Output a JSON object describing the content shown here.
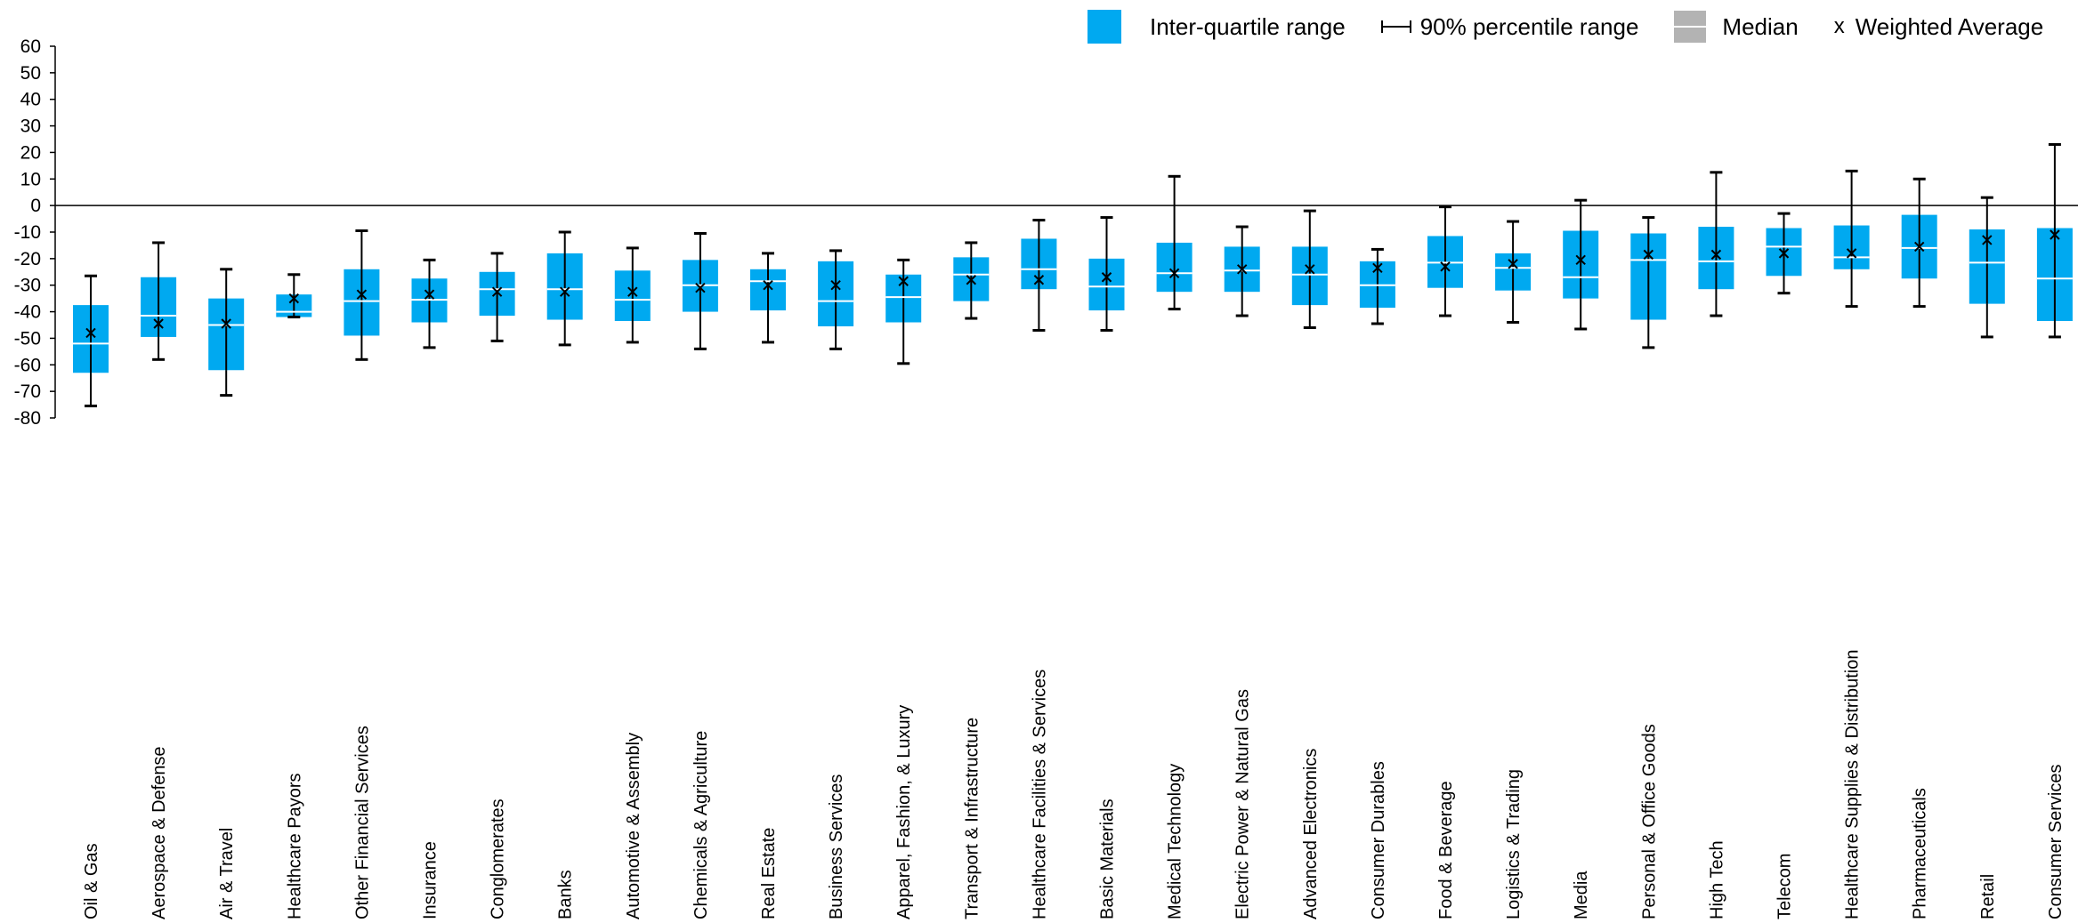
{
  "legend": {
    "iqr_label": "Inter-quartile range",
    "p90_label": "90% percentile range",
    "median_label": "Median",
    "wavg_label": "Weighted Average",
    "wavg_marker": "x"
  },
  "colors": {
    "iqr_fill": "#00a9f0",
    "median_line": "#ffffff",
    "whisker": "#000000",
    "legend_median_swatch": "#b3b3b3"
  },
  "chart_data": {
    "type": "box",
    "title": "",
    "xlabel": "",
    "ylabel": "",
    "ylim": [
      -80,
      60
    ],
    "yticks": [
      60,
      50,
      40,
      30,
      20,
      10,
      0,
      -10,
      -20,
      -30,
      -40,
      -50,
      -60,
      -70,
      -80
    ],
    "zero_line": true,
    "legend_position": "top-right",
    "categories": [
      "Oil & Gas",
      "Aerospace & Defense",
      "Air & Travel",
      "Healthcare Payors",
      "Other Financial Services",
      "Insurance",
      "Conglomerates",
      "Banks",
      "Automotive & Assembly",
      "Chemicals & Agriculture",
      "Real Estate",
      "Business Services",
      "Apparel, Fashion, & Luxury",
      "Transport & Infrastructure",
      "Healthcare Facilities & Services",
      "Basic Materials",
      "Medical Technology",
      "Electric Power & Natural Gas",
      "Advanced Electronics",
      "Consumer Durables",
      "Food & Beverage",
      "Logistics & Trading",
      "Media",
      "Personal & Office Goods",
      "High Tech",
      "Telecom",
      "Healthcare Supplies & Distribution",
      "Pharmaceuticals",
      "Retail",
      "Consumer Services"
    ],
    "p5": [
      -75.5,
      -58,
      -71.5,
      -42,
      -58,
      -53.5,
      -51,
      -52.5,
      -51.5,
      -54,
      -51.5,
      -54,
      -59.5,
      -42.5,
      -47,
      -47,
      -39,
      -41.5,
      -46,
      -44.5,
      -41.5,
      -44,
      -46.5,
      -53.5,
      -41.5,
      -33,
      -38,
      -38,
      -49.5,
      -49.5
    ],
    "q1": [
      -63,
      -49.5,
      -62,
      -42,
      -49,
      -44,
      -41.5,
      -43,
      -43.5,
      -40,
      -39.5,
      -45.5,
      -44,
      -36,
      -31.5,
      -39.5,
      -32.5,
      -32.5,
      -37.5,
      -38.5,
      -31,
      -32,
      -35,
      -43,
      -31.5,
      -26.5,
      -24,
      -27.5,
      -37,
      -43.5
    ],
    "median": [
      -52,
      -41.5,
      -45,
      -40,
      -36,
      -35.5,
      -31.5,
      -31.5,
      -35.5,
      -30,
      -28.5,
      -36,
      -34.5,
      -26,
      -24,
      -30.5,
      -25.5,
      -24.5,
      -26,
      -30,
      -21.5,
      -23.5,
      -27,
      -20.5,
      -21,
      -15.5,
      -19.5,
      -16,
      -21.5,
      -27.5
    ],
    "q3": [
      -37.5,
      -27,
      -35,
      -33.5,
      -24,
      -27.5,
      -25,
      -18,
      -24.5,
      -20.5,
      -24,
      -21,
      -26,
      -19.5,
      -12.5,
      -20,
      -14,
      -15.5,
      -15.5,
      -21,
      -11.5,
      -18,
      -9.5,
      -10.5,
      -8,
      -8.5,
      -7.5,
      -3.5,
      -9,
      -8.5
    ],
    "p95": [
      -26.5,
      -14,
      -24,
      -26,
      -9.5,
      -20.5,
      -18,
      -10,
      -16,
      -10.5,
      -18,
      -17,
      -20.5,
      -14,
      -5.5,
      -4.5,
      11,
      -8,
      -2,
      -16.5,
      -0.5,
      -6,
      2,
      -4.5,
      12.5,
      -3,
      13,
      10,
      3,
      23
    ],
    "weighted_average": [
      -48,
      -44.5,
      -44.5,
      -35,
      -33.5,
      -33.5,
      -32.5,
      -32.5,
      -32.5,
      -31,
      -30,
      -30,
      -28.5,
      -28,
      -28,
      -27,
      -25.5,
      -24,
      -24,
      -23.5,
      -23,
      -22,
      -20.5,
      -18.5,
      -18.5,
      -18,
      -18,
      -15.5,
      -13,
      -11
    ]
  }
}
